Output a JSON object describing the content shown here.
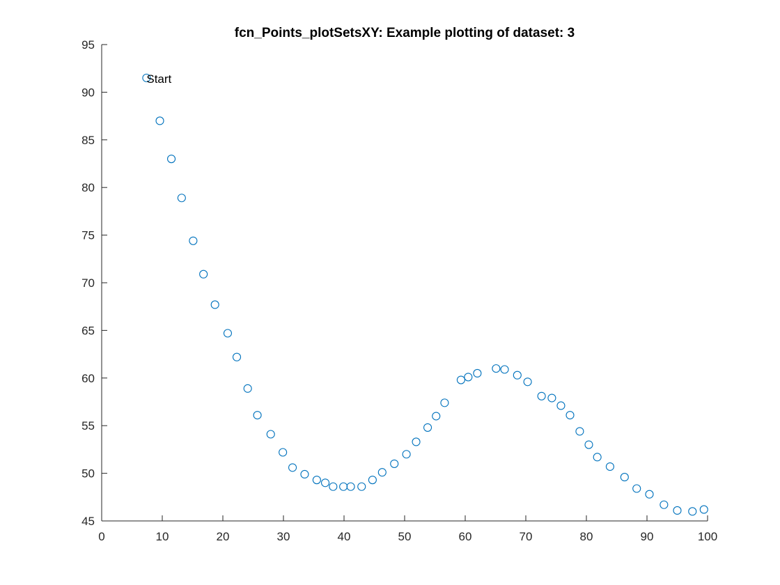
{
  "chart_data": {
    "type": "scatter",
    "title": "fcn_Points_plotSetsXY: Example plotting of dataset: 3",
    "xlabel": "",
    "ylabel": "",
    "xlim": [
      0,
      100
    ],
    "ylim": [
      45,
      95
    ],
    "xticks": [
      0,
      10,
      20,
      30,
      40,
      50,
      60,
      70,
      80,
      90,
      100
    ],
    "yticks": [
      45,
      50,
      55,
      60,
      65,
      70,
      75,
      80,
      85,
      90,
      95
    ],
    "grid": false,
    "marker": "circle-open",
    "color": "#0072BD",
    "annotations": [
      {
        "text": "Start",
        "x": 7.4,
        "y": 91.5
      }
    ],
    "series": [
      {
        "x": [
          7.4,
          9.6,
          11.5,
          13.2,
          15.1,
          16.8,
          18.7,
          20.8,
          22.3,
          24.1,
          25.7,
          27.9,
          29.9,
          31.5,
          33.5,
          35.5,
          36.9,
          38.2,
          39.9,
          41.1,
          42.9,
          44.7,
          46.3,
          48.3,
          50.3,
          51.9,
          53.8,
          55.2,
          56.6,
          59.3,
          60.5,
          62.0,
          65.1,
          66.5,
          68.6,
          70.3,
          72.6,
          74.3,
          75.8,
          77.3,
          78.9,
          80.4,
          81.8,
          83.9,
          86.3,
          88.3,
          90.4,
          92.8,
          95.0,
          97.5,
          99.4
        ],
        "y": [
          91.5,
          87.0,
          83.0,
          78.9,
          74.4,
          70.9,
          67.7,
          64.7,
          62.2,
          58.9,
          56.1,
          54.1,
          52.2,
          50.6,
          49.9,
          49.3,
          49.0,
          48.6,
          48.6,
          48.6,
          48.6,
          49.3,
          50.1,
          51.0,
          52.0,
          53.3,
          54.8,
          56.0,
          57.4,
          59.8,
          60.1,
          60.5,
          61.0,
          60.9,
          60.3,
          59.6,
          58.1,
          57.9,
          57.1,
          56.1,
          54.4,
          53.0,
          51.7,
          50.7,
          49.6,
          48.4,
          47.8,
          46.7,
          46.1,
          46.0,
          46.2
        ]
      }
    ]
  }
}
